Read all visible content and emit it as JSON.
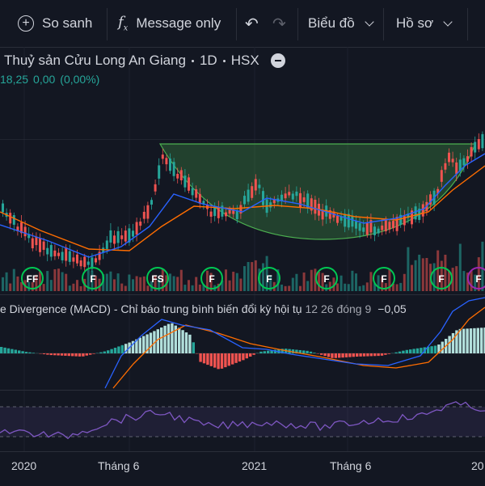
{
  "toolbar": {
    "compare_label": "So sanh",
    "message_label": "Message only",
    "chart_menu_label": "Biểu đồ",
    "profile_menu_label": "Hồ sơ"
  },
  "symbol": {
    "name": "Thuỷ sản Cửu Long An Giang",
    "interval": "1D",
    "exchange": "HSX"
  },
  "price": {
    "close": "18,25",
    "change": "0,00",
    "change_pct": "(0,00%)"
  },
  "macd": {
    "name": "e Divergence (MACD) - Chỉ báo trung bình biến đổi kỳ hội tụ",
    "params": "12 26 đóng 9",
    "value": "−0,05"
  },
  "xaxis": {
    "labels": [
      "2020",
      "Tháng 6",
      "2021",
      "Tháng 6",
      "20"
    ]
  },
  "markers": {
    "labels": [
      "FF",
      "F",
      "FS",
      "F",
      "F",
      "F",
      "F",
      "F",
      "F"
    ]
  },
  "colors": {
    "up": "#26a69a",
    "down": "#ef5350",
    "ema_fast": "#2962ff",
    "ema_slow": "#ff6d00",
    "rsi": "#7e57c2",
    "cup": "#4caf50",
    "marker": "#00c853"
  }
}
